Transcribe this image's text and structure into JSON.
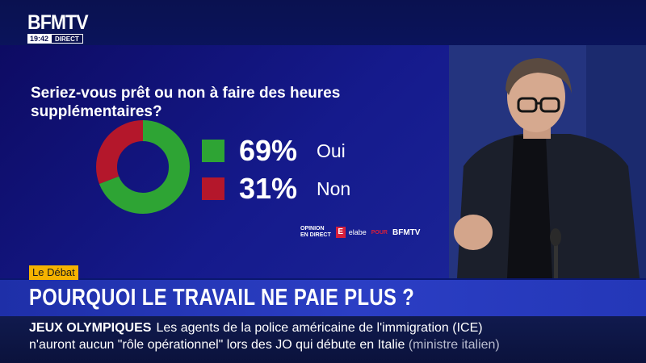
{
  "logo": {
    "name": "BFMTV",
    "time": "19:42",
    "live": "DIRECT"
  },
  "poll": {
    "question": "Seriez-vous prêt ou non à faire des heures supplémentaires?",
    "answers": [
      {
        "label": "Oui",
        "percent": "69",
        "value": 69,
        "color": "#2ea434"
      },
      {
        "label": "Non",
        "percent": "31",
        "value": 31,
        "color": "#b4172b"
      }
    ],
    "percent_sign": "%",
    "credits": {
      "opinion_line1": "OPINION",
      "opinion_line2": "EN DIRECT",
      "elabe_mark": "E",
      "elabe": "elabe",
      "pour": "POUR",
      "channel": "BFMTV"
    }
  },
  "lower_third": {
    "tag": "Le Débat",
    "headline": "POURQUOI LE TRAVAIL NE PAIE PLUS ?",
    "ticker": {
      "category": "JEUX OLYMPIQUES",
      "line1": "Les agents de la police américaine de l'immigration (ICE)",
      "line2": "n'auront aucun \"rôle opérationnel\" lors des JO qui débute en Italie",
      "line2_source": "(ministre italien)"
    }
  },
  "colors": {
    "yes": "#2ea434",
    "no": "#b4172b",
    "tag": "#f5b300"
  }
}
